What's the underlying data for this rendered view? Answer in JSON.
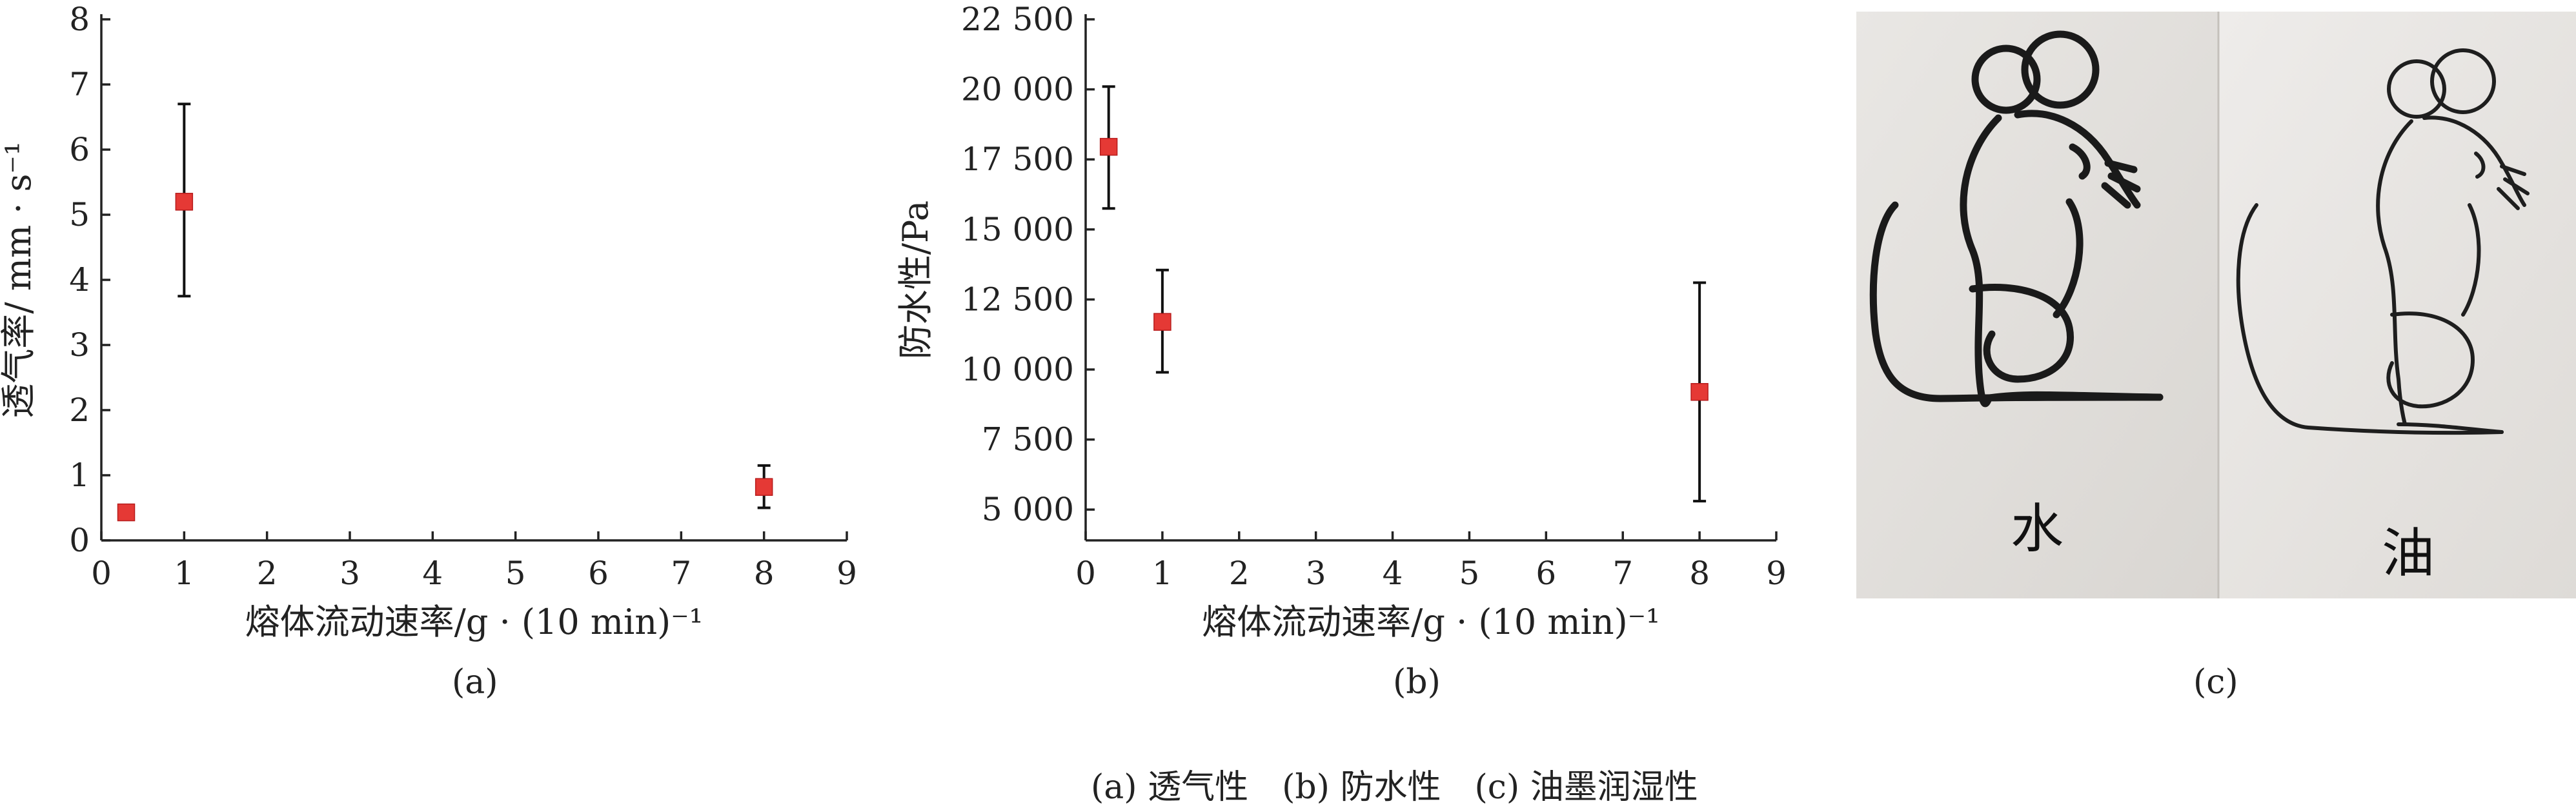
{
  "chart_data": [
    {
      "type": "scatter",
      "panel": "(a)",
      "xlabel": "熔体流动速率/g · (10 min)⁻¹",
      "ylabel": "透气率/ mm · s⁻¹",
      "xlim": [
        0,
        9
      ],
      "ylim": [
        0,
        8
      ],
      "x_ticks": [
        0,
        1,
        2,
        3,
        4,
        5,
        6,
        7,
        8,
        9
      ],
      "y_ticks": [
        0,
        1,
        2,
        3,
        4,
        5,
        6,
        7,
        8
      ],
      "x_tick_labels": [
        "0",
        "1",
        "2",
        "3",
        "4",
        "5",
        "6",
        "7",
        "8",
        "9"
      ],
      "y_tick_labels": [
        "0",
        "1",
        "2",
        "3",
        "4",
        "5",
        "6",
        "7",
        "8"
      ],
      "grid": false,
      "marker_color": "#e53935",
      "points": [
        {
          "x": 0.3,
          "y": 0.43,
          "err_low": 0.36,
          "err_high": 0.5
        },
        {
          "x": 1,
          "y": 5.2,
          "err_low": 3.75,
          "err_high": 6.7
        },
        {
          "x": 8,
          "y": 0.82,
          "err_low": 0.5,
          "err_high": 1.15
        }
      ]
    },
    {
      "type": "scatter",
      "panel": "(b)",
      "xlabel": "熔体流动速率/g · (10 min)⁻¹",
      "ylabel": "防水性/Pa",
      "xlim": [
        0,
        9
      ],
      "ylim": [
        3900,
        22500
      ],
      "x_ticks": [
        0,
        1,
        2,
        3,
        4,
        5,
        6,
        7,
        8,
        9
      ],
      "y_ticks": [
        5000,
        7500,
        10000,
        12500,
        15000,
        17500,
        20000,
        22500
      ],
      "x_tick_labels": [
        "0",
        "1",
        "2",
        "3",
        "4",
        "5",
        "6",
        "7",
        "8",
        "9"
      ],
      "y_tick_labels": [
        "5 000",
        "7 500",
        "10 000",
        "12 500",
        "15 000",
        "17 500",
        "20 000",
        "22 500"
      ],
      "grid": false,
      "marker_color": "#e53935",
      "points": [
        {
          "x": 0.3,
          "y": 17950,
          "err_low": 15750,
          "err_high": 20100
        },
        {
          "x": 1,
          "y": 11700,
          "err_low": 9900,
          "err_high": 13550
        },
        {
          "x": 8,
          "y": 9200,
          "err_low": 5300,
          "err_high": 13100
        }
      ]
    }
  ],
  "captions": {
    "panel_a": "(a)",
    "panel_b": "(b)",
    "panel_c": "(c)",
    "main": "(a) 透气性　(b) 防水性　(c) 油墨润湿性"
  },
  "photo": {
    "label_left": "水",
    "label_right": "油",
    "icons": [
      "mouse-drawing-water",
      "mouse-drawing-oil"
    ]
  }
}
